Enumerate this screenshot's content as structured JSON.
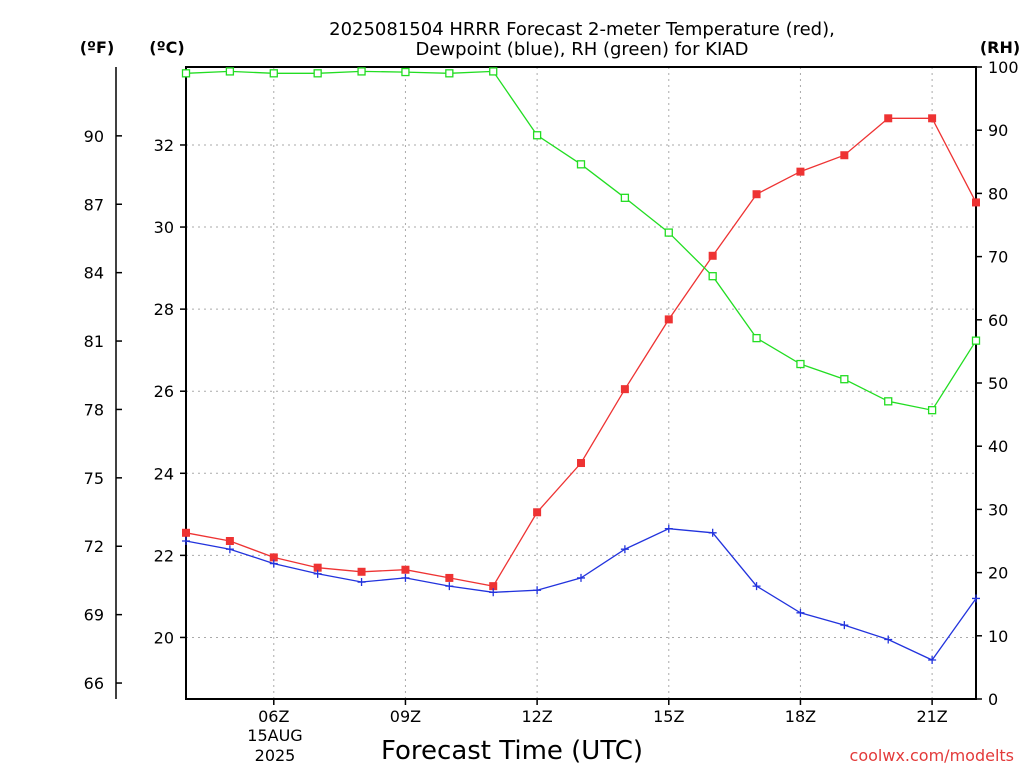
{
  "title": [
    "2025081504 HRRR Forecast 2-meter Temperature (red),",
    "Dewpoint (blue), RH (green) for KIAD"
  ],
  "units": {
    "fahrenheit": "(ºF)",
    "celsius": "(ºC)",
    "rh": "(RH)"
  },
  "xlabel": "Forecast Time (UTC)",
  "date_label": [
    "15AUG",
    "2025"
  ],
  "credit": "coolwx.com/modelts",
  "colors": {
    "temperature": "#ee3333",
    "dewpoint": "#2233dd",
    "rh": "#22dd22",
    "grid": "#aaaaaa"
  },
  "chart_data": {
    "type": "line",
    "title": "2025081504 HRRR Forecast 2-meter Temperature (red), Dewpoint (blue), RH (green) for KIAD",
    "xlabel": "Forecast Time (UTC)",
    "x": [
      "04Z",
      "05Z",
      "06Z",
      "07Z",
      "08Z",
      "09Z",
      "10Z",
      "11Z",
      "12Z",
      "13Z",
      "14Z",
      "15Z",
      "16Z",
      "17Z",
      "18Z",
      "19Z",
      "20Z",
      "21Z",
      "22Z"
    ],
    "x_ticks": [
      "06Z",
      "09Z",
      "12Z",
      "15Z",
      "18Z",
      "21Z"
    ],
    "xlim": [
      "04Z",
      "22Z"
    ],
    "left_axis_c": {
      "ticks": [
        20,
        22,
        24,
        26,
        28,
        30,
        32
      ],
      "ylim": [
        18.5,
        33.9
      ]
    },
    "left_axis_f": {
      "ticks": [
        66,
        69,
        72,
        75,
        78,
        81,
        84,
        87,
        90
      ]
    },
    "right_axis_rh": {
      "ticks": [
        0,
        10,
        20,
        30,
        40,
        50,
        60,
        70,
        80,
        90,
        100
      ],
      "ylim": [
        0,
        100
      ]
    },
    "grid": true,
    "series": [
      {
        "name": "Temperature",
        "axis": "celsius",
        "marker": "filled-square",
        "values": [
          22.55,
          22.35,
          21.95,
          21.7,
          21.6,
          21.65,
          21.45,
          21.25,
          23.05,
          24.25,
          26.05,
          27.75,
          29.3,
          30.8,
          31.35,
          31.75,
          32.65,
          32.65,
          30.6
        ]
      },
      {
        "name": "Dewpoint",
        "axis": "celsius",
        "marker": "plus",
        "values": [
          22.35,
          22.15,
          21.8,
          21.55,
          21.35,
          21.45,
          21.25,
          21.1,
          21.15,
          21.45,
          22.15,
          22.65,
          22.55,
          21.25,
          20.6,
          20.3,
          19.95,
          19.45,
          20.95
        ]
      },
      {
        "name": "RH",
        "axis": "rh",
        "marker": "open-square",
        "values": [
          99.0,
          99.3,
          99.0,
          99.0,
          99.3,
          99.2,
          99.0,
          99.3,
          89.2,
          84.6,
          79.3,
          73.8,
          66.9,
          57.1,
          53.0,
          50.6,
          47.1,
          45.7,
          56.7
        ]
      }
    ]
  }
}
